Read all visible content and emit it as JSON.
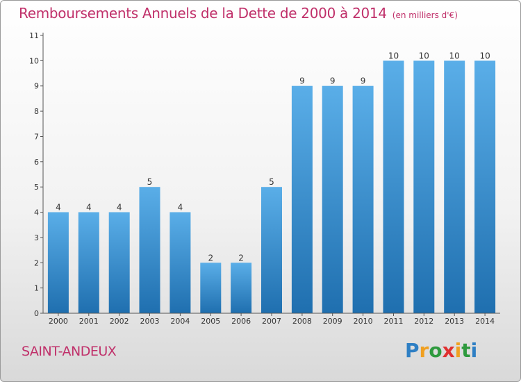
{
  "chart_data": {
    "type": "bar",
    "title": "Remboursements Annuels de la Dette de 2000 à 2014",
    "subtitle": "(en milliers d'€)",
    "categories": [
      "2000",
      "2001",
      "2002",
      "2003",
      "2004",
      "2005",
      "2006",
      "2007",
      "2008",
      "2009",
      "2010",
      "2011",
      "2012",
      "2013",
      "2014"
    ],
    "values": [
      4,
      4,
      4,
      5,
      4,
      2,
      2,
      5,
      9,
      9,
      9,
      10,
      10,
      10,
      10
    ],
    "data_labels": [
      "4",
      "4",
      "4",
      "5",
      "4",
      "2",
      "2",
      "5",
      "9",
      "9",
      "9",
      "10",
      "10",
      "10",
      "10"
    ],
    "ylim": [
      0,
      11
    ],
    "yticks": [
      "0",
      "1",
      "2",
      "3",
      "4",
      "5",
      "6",
      "7",
      "8",
      "9",
      "10",
      "11"
    ],
    "grid": false,
    "xlabel": "",
    "ylabel": ""
  },
  "footer": {
    "commune": "SAINT-ANDEUX",
    "brand_letters": [
      "P",
      "r",
      "o",
      "x",
      "i",
      "t",
      "i"
    ]
  },
  "colors": {
    "title": "#c0306a",
    "bar_top": "#5aaee8",
    "bar_bottom": "#1f6faf",
    "axis": "#555555",
    "brand": [
      "#2e7fc4",
      "#f0a020",
      "#2e9a3e",
      "#e03030",
      "#f0a020",
      "#2e9a3e",
      "#2e7fc4"
    ]
  }
}
